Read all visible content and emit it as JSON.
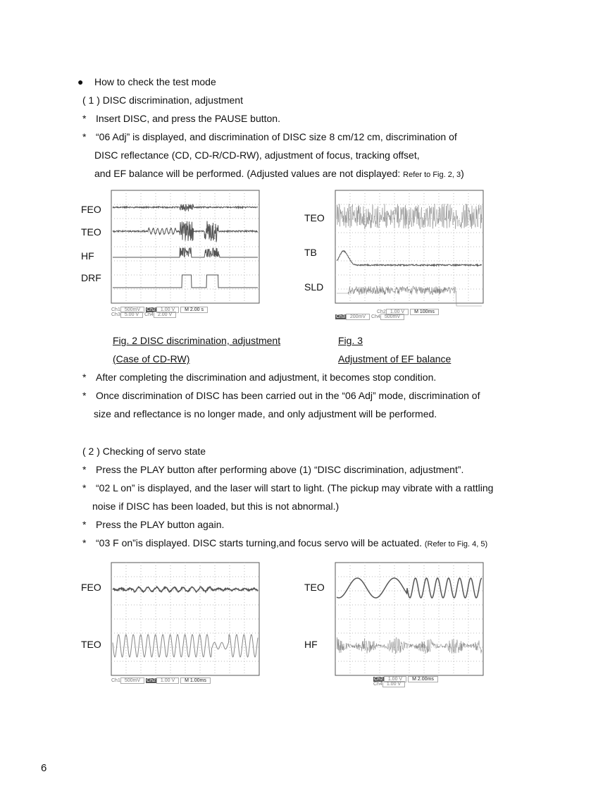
{
  "section_heading": "How to check the test mode",
  "part1": {
    "title": "( 1 ) DISC discrimination, adjustment",
    "bullets": [
      "Insert DISC, and press the PAUSE button.",
      "“06 Adj” is displayed, and discrimination of DISC size 8 cm/12 cm, discrimination of",
      "DISC reflectance (CD, CD-R/CD-RW), adjustment of focus, tracking offset,",
      "and EF balance will be performed. (Adjusted values are not displayed: ",
      "Refer to Fig. 2, 3",
      ")"
    ],
    "after": [
      "After completing the discrimination and adjustment, it becomes stop condition.",
      "Once discrimination of DISC has been carried out in the “06 Adj” mode, discrimination of",
      "size and reflectance is no longer made, and only adjustment will be performed."
    ]
  },
  "fig2": {
    "signals": [
      "FEO",
      "TEO",
      "HF",
      "DRF"
    ],
    "readout": {
      "ch1": "500mV",
      "ch2": "1.00 V",
      "time": "M 2.00 s",
      "ch3": "5.00 V",
      "ch4": "2.00 V"
    },
    "caption1": "Fig. 2   DISC discrimination, adjustment",
    "caption2": "(Case of CD-RW)"
  },
  "fig3": {
    "signals": [
      "TEO",
      "TB",
      "SLD"
    ],
    "readout": {
      "ch2": "1.00 V",
      "time": "M 100ms",
      "ch3": "200mV",
      "ch4": "500mV"
    },
    "caption1": "Fig. 3",
    "caption2": "Adjustment of EF balance"
  },
  "part2": {
    "title": "( 2 ) Checking of servo state",
    "bullets": [
      "Press the PLAY button after performing above (1) “DISC discrimination, adjustment”.",
      "“02 L on” is displayed, and the laser will start to light. (The pickup may vibrate with a rattling",
      "noise if DISC has been loaded, but this is not abnormal.)",
      "Press the PLAY button again.",
      "“03 F on”is displayed. DISC starts turning,and focus servo will be actuated. ",
      "(Refer to Fig. 4, 5)"
    ]
  },
  "fig4": {
    "signals": [
      "FEO",
      "TEO"
    ],
    "readout": {
      "ch1": "500mV",
      "ch2": "1.00 V",
      "time": "M 1.00ms"
    }
  },
  "fig5": {
    "signals": [
      "TEO",
      "HF"
    ],
    "readout": {
      "ch2": "1.00 V",
      "time": "M 2.00ms",
      "ch4": "1.00 V"
    }
  },
  "page_number": "6"
}
